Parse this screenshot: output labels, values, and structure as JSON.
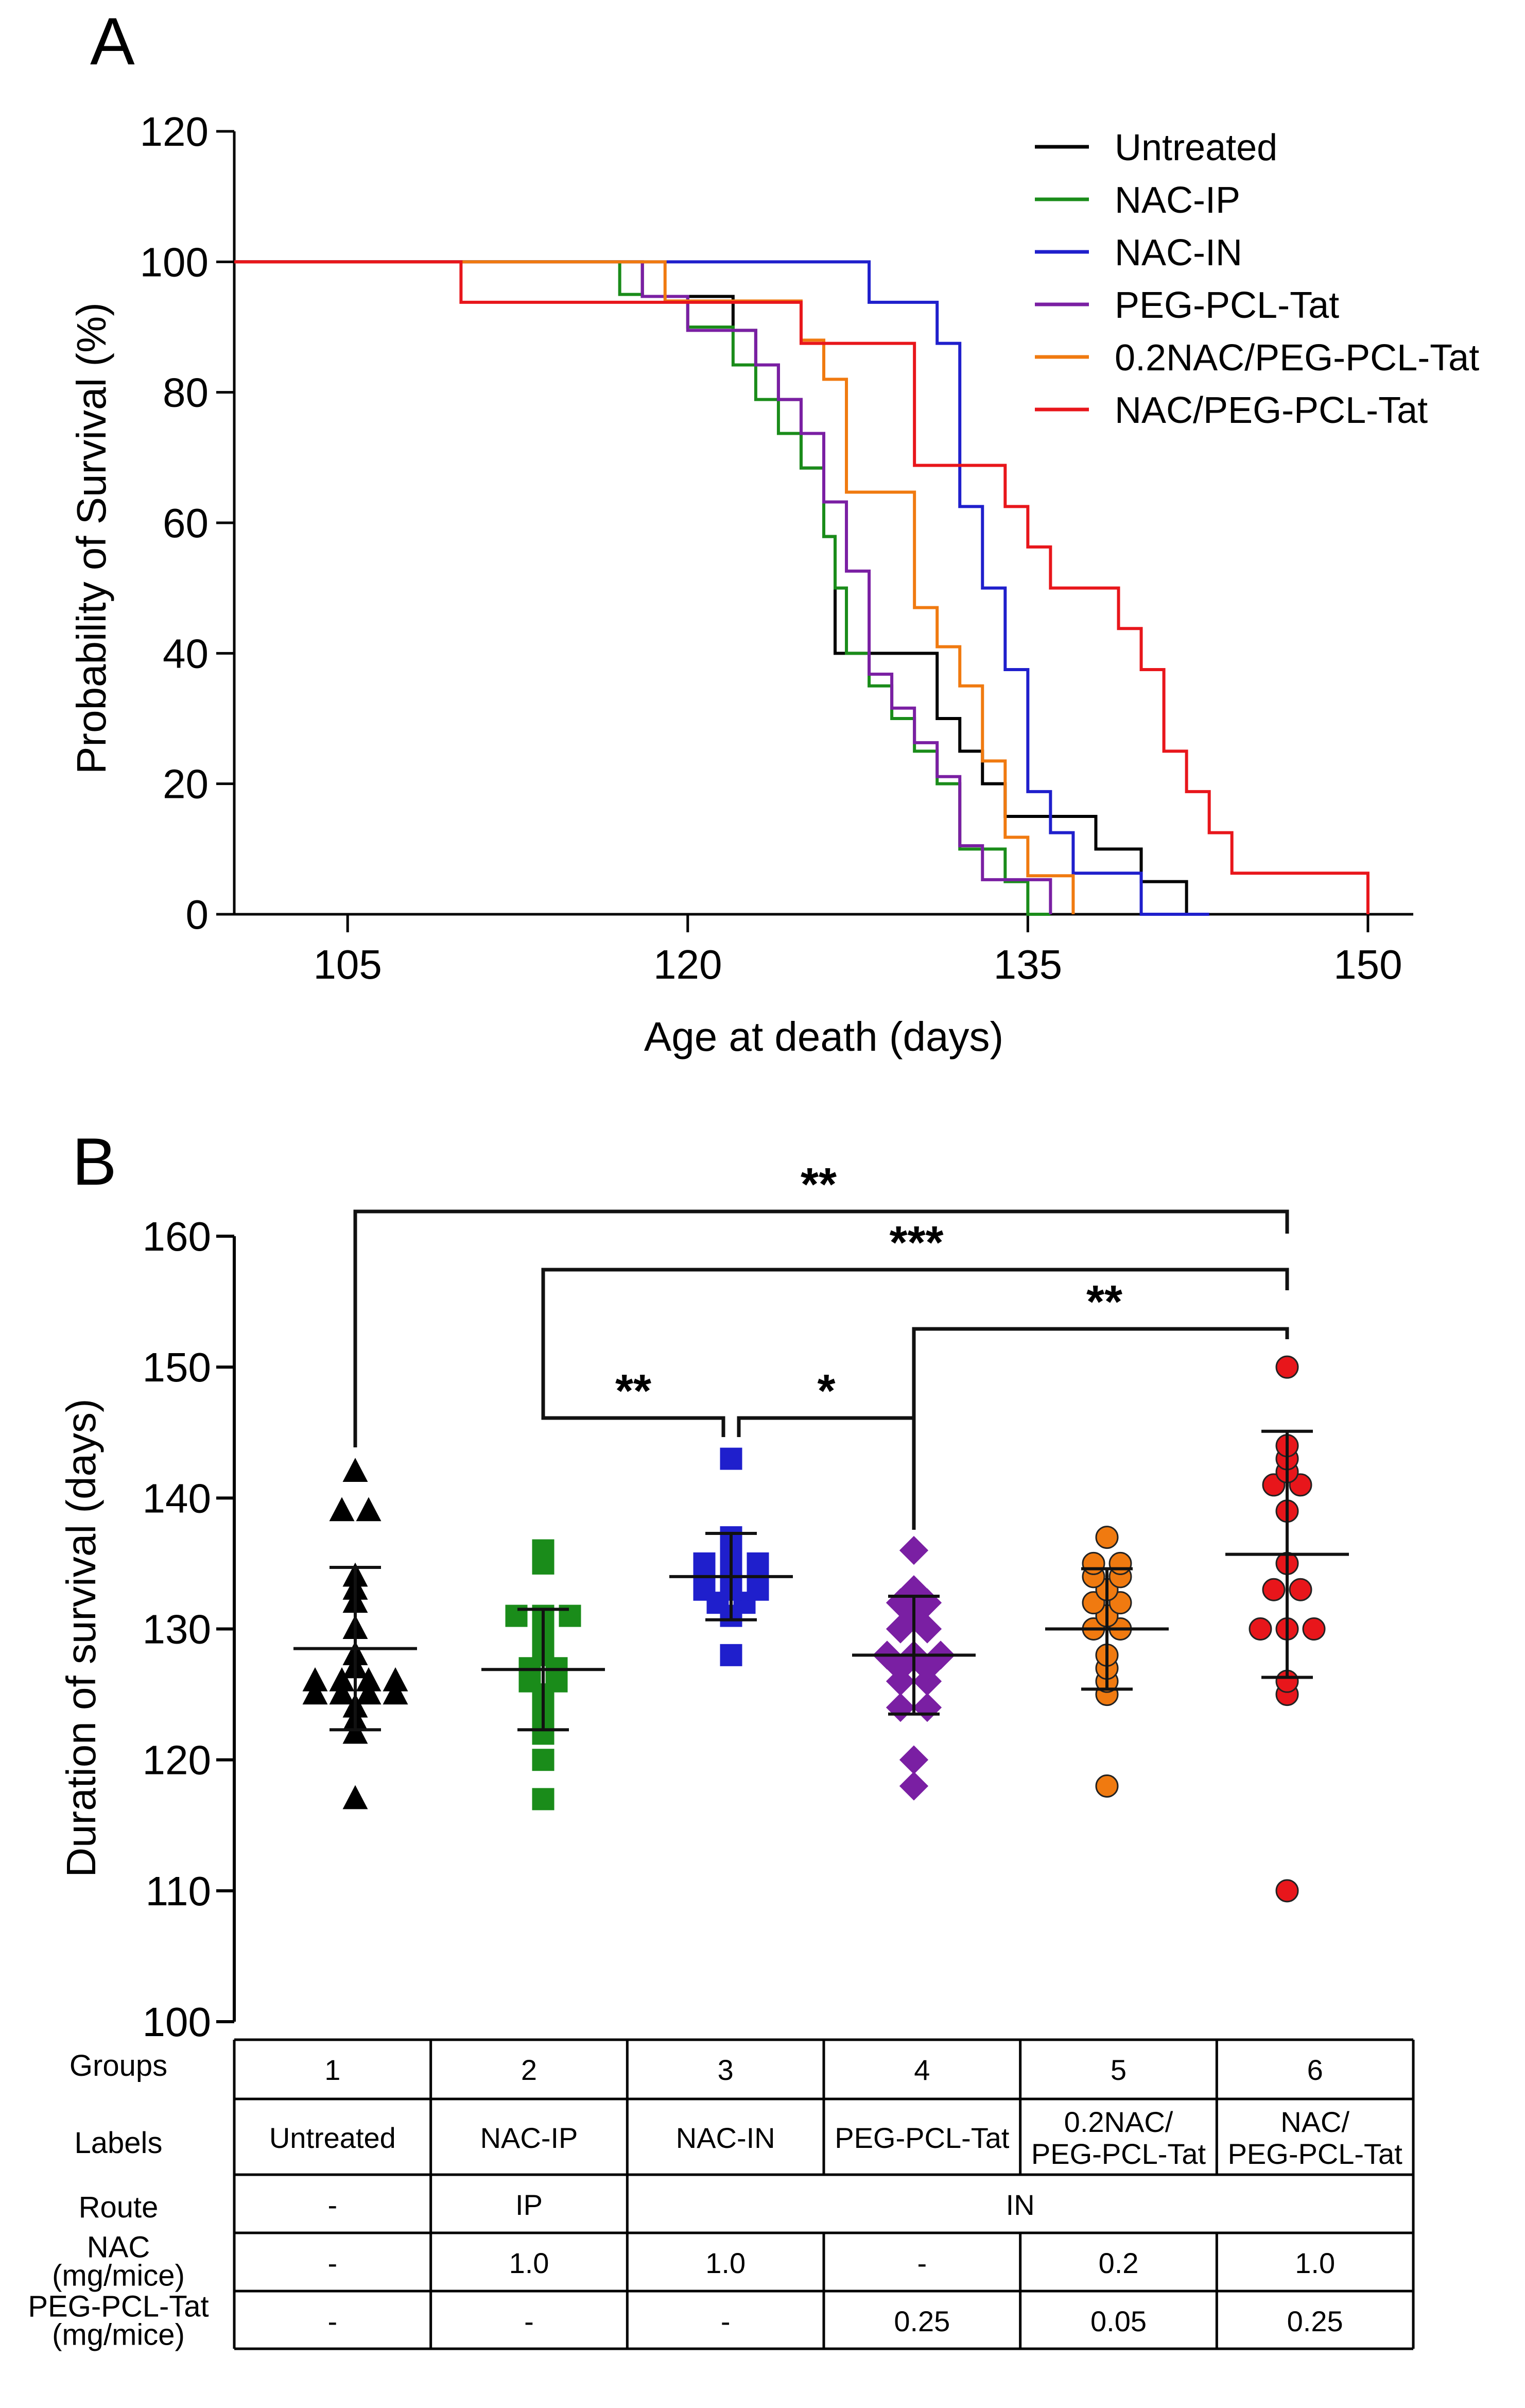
{
  "panel_a": {
    "letter": "A",
    "chart_data": {
      "type": "line",
      "subtype": "kaplan-meier survival",
      "xlabel": "Age at death (days)",
      "ylabel": "Probability of Survival (%)",
      "xlim": [
        100,
        152
      ],
      "ylim": [
        0,
        120
      ],
      "xticks": [
        "105",
        "120",
        "135",
        "150"
      ],
      "yticks": [
        "0",
        "20",
        "40",
        "60",
        "80",
        "100",
        "120"
      ],
      "legend_position": "top-right",
      "series": [
        {
          "name": "Untreated",
          "color": "#000000",
          "x": [
            100,
            118,
            122,
            123,
            124,
            125,
            126,
            126.5,
            127,
            131,
            132,
            133,
            134,
            138,
            140,
            142
          ],
          "y": [
            100,
            94.7,
            89.5,
            84.2,
            78.9,
            68.4,
            57.9,
            40,
            40,
            30,
            25,
            20,
            15,
            10,
            5,
            0
          ]
        },
        {
          "name": "NAC-IP",
          "color": "#1a8c1a",
          "x": [
            100,
            117,
            118,
            120,
            122,
            123,
            124,
            125,
            126,
            126.5,
            127,
            128,
            129,
            130,
            131,
            132,
            134,
            135,
            136
          ],
          "y": [
            100,
            95,
            94.7,
            90,
            84.2,
            78.9,
            73.7,
            68.4,
            57.9,
            50,
            40,
            35,
            30,
            25,
            20,
            10,
            5,
            0,
            0
          ]
        },
        {
          "name": "NAC-IN",
          "color": "#1f1fcc",
          "x": [
            100,
            128,
            131,
            132,
            133,
            134,
            135,
            136,
            137,
            138,
            140,
            143
          ],
          "y": [
            100,
            93.8,
            87.5,
            62.5,
            50,
            37.5,
            18.8,
            12.5,
            6.3,
            6.3,
            0,
            0
          ]
        },
        {
          "name": "PEG-PCL-Tat",
          "color": "#7a1fa3",
          "x": [
            100,
            118,
            120,
            123,
            124,
            125,
            126,
            127,
            128,
            129,
            130,
            131,
            132,
            133,
            136
          ],
          "y": [
            100,
            94.7,
            89.5,
            84.2,
            78.9,
            73.7,
            63.2,
            52.6,
            36.8,
            31.6,
            26.3,
            21.1,
            10.5,
            5.3,
            0
          ]
        },
        {
          "name": "0.2NAC/PEG-PCL-Tat",
          "color": "#f07a10",
          "x": [
            100,
            118,
            119,
            125,
            126,
            127,
            130,
            131,
            132,
            133,
            134,
            135,
            136,
            137
          ],
          "y": [
            100,
            100,
            94,
            88,
            82,
            64.7,
            47,
            41,
            35,
            23.5,
            11.8,
            5.9,
            5.9,
            0
          ]
        },
        {
          "name": "NAC/PEG-PCL-Tat",
          "color": "#e8161b",
          "x": [
            100,
            110,
            125,
            126,
            130,
            132,
            134,
            135,
            136,
            137,
            139,
            140,
            141,
            142,
            143,
            144,
            145,
            150
          ],
          "y": [
            100,
            93.8,
            87.5,
            87.5,
            68.8,
            68.8,
            62.5,
            56.3,
            50,
            50,
            43.8,
            37.5,
            25,
            18.8,
            12.5,
            6.3,
            6.3,
            0
          ]
        }
      ]
    }
  },
  "panel_b": {
    "letter": "B",
    "chart_data": {
      "type": "scatter",
      "subtype": "dot plot with mean and SD",
      "ylabel": "Duration of survival (days)",
      "ylim": [
        100,
        160
      ],
      "yticks": [
        "100",
        "110",
        "120",
        "130",
        "140",
        "150",
        "160"
      ],
      "series": [
        {
          "group": "1",
          "name": "Untreated",
          "marker": "triangle",
          "color": "#000000",
          "values": [
            117,
            122,
            123,
            124,
            125,
            125,
            125,
            125,
            126,
            126,
            126,
            126,
            127,
            128,
            130,
            132,
            133,
            134,
            139,
            139,
            142
          ],
          "mean": 128.5,
          "sd": 6.2
        },
        {
          "group": "2",
          "name": "NAC-IP",
          "marker": "square",
          "color": "#1a8c1a",
          "values": [
            117,
            120,
            122,
            123,
            124,
            125,
            126,
            126,
            127,
            127,
            128,
            129,
            130,
            131,
            131,
            131,
            135,
            136
          ],
          "mean": 126.9,
          "sd": 4.6
        },
        {
          "group": "3",
          "name": "NAC-IN",
          "marker": "square",
          "color": "#1f1fcc",
          "values": [
            128,
            131,
            132,
            132,
            133,
            133,
            133,
            134,
            134,
            134,
            135,
            135,
            135,
            136,
            137,
            143
          ],
          "mean": 134,
          "sd": 3.3
        },
        {
          "group": "4",
          "name": "PEG-PCL-Tat",
          "marker": "diamond",
          "color": "#7a1fa3",
          "values": [
            118,
            120,
            124,
            124,
            126,
            126,
            127,
            127,
            128,
            128,
            128,
            130,
            130,
            131,
            132,
            132,
            133,
            136
          ],
          "mean": 128,
          "sd": 4.5
        },
        {
          "group": "5",
          "name": "0.2NAC/PEG-PCL-Tat",
          "marker": "circle",
          "color": "#f07a10",
          "values": [
            118,
            125,
            126,
            127,
            128,
            130,
            130,
            131,
            132,
            132,
            133,
            134,
            134,
            135,
            135,
            137
          ],
          "mean": 130,
          "sd": 4.6
        },
        {
          "group": "6",
          "name": "NAC/PEG-PCL-Tat",
          "marker": "circle",
          "color": "#e8161b",
          "values": [
            110,
            125,
            126,
            130,
            130,
            130,
            133,
            133,
            135,
            139,
            141,
            141,
            142,
            143,
            144,
            150
          ],
          "mean": 135.7,
          "sd": 9.4
        }
      ],
      "significance": [
        {
          "from": "1",
          "to": "6",
          "label": "**"
        },
        {
          "from": "2",
          "to": "6",
          "label": "***"
        },
        {
          "from": "4",
          "to": "6",
          "label": "**"
        },
        {
          "from": "2",
          "to": "3",
          "label": "**"
        },
        {
          "from": "3",
          "to": "4",
          "label": "*"
        }
      ]
    },
    "table": {
      "row_headers": [
        "Groups",
        "Labels",
        "Route",
        "NAC\n(mg/mice)",
        "PEG-PCL-Tat\n(mg/mice)"
      ],
      "groups": [
        "1",
        "2",
        "3",
        "4",
        "5",
        "6"
      ],
      "labels": [
        "Untreated",
        "NAC-IP",
        "NAC-IN",
        "PEG-PCL-Tat",
        "0.2NAC/\nPEG-PCL-Tat",
        "NAC/\nPEG-PCL-Tat"
      ],
      "route": [
        "-",
        "IP",
        "IN"
      ],
      "nac": [
        "-",
        "1.0",
        "1.0",
        "-",
        "0.2",
        "1.0"
      ],
      "peg": [
        "-",
        "-",
        "-",
        "0.25",
        "0.05",
        "0.25"
      ]
    }
  }
}
